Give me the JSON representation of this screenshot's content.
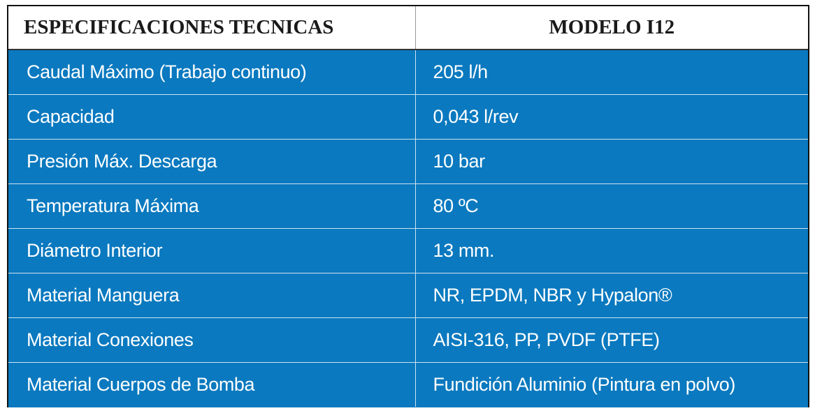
{
  "table": {
    "columns": [
      "ESPECIFICACIONES TECNICAS",
      "MODELO I12"
    ],
    "rows": [
      [
        "Caudal Máximo (Trabajo continuo)",
        "205 l/h"
      ],
      [
        "Capacidad",
        "0,043 l/rev"
      ],
      [
        "Presión Máx. Descarga",
        "10 bar"
      ],
      [
        "Temperatura Máxima",
        "80 ºC"
      ],
      [
        "Diámetro Interior",
        "13 mm."
      ],
      [
        "Material Manguera",
        "NR, EPDM, NBR y Hypalon®"
      ],
      [
        "Material Conexiones",
        "AISI-316, PP, PVDF (PTFE)"
      ],
      [
        "Material Cuerpos de Bomba",
        "Fundición Aluminio (Pintura en polvo)"
      ]
    ]
  }
}
